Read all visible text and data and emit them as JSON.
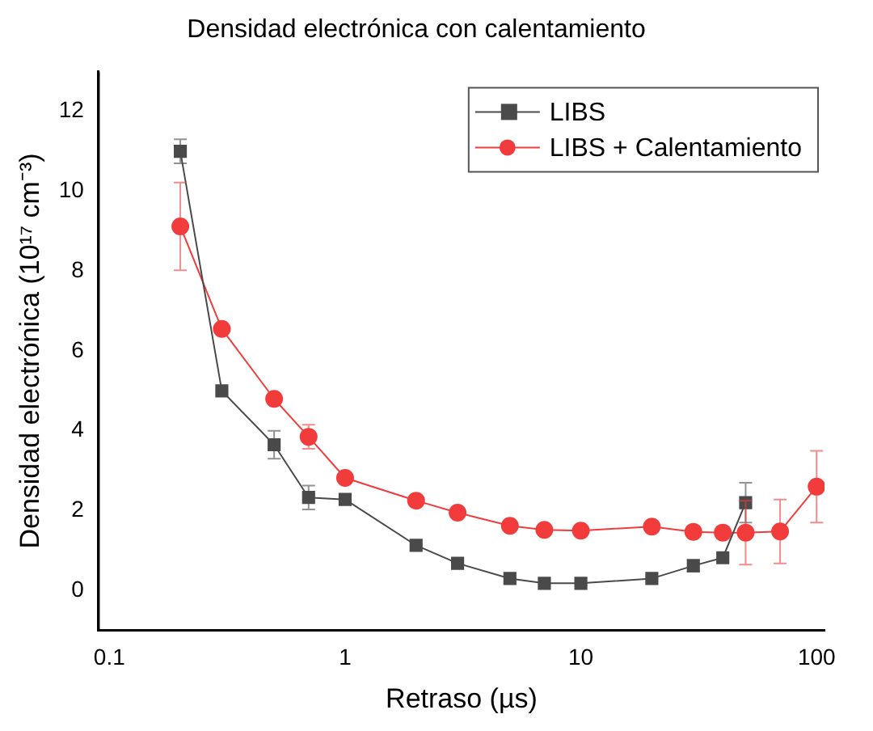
{
  "chart_data": {
    "type": "line",
    "title": "Densidad electrónica con calentamiento",
    "xlabel": "Retraso (µs)",
    "ylabel": "Densidad electrónica (10¹⁷ cm⁻³)",
    "log": "x",
    "xlim": [
      0.09,
      108
    ],
    "xticks": [
      0.1,
      1,
      10,
      100
    ],
    "ylim": [
      -1,
      13
    ],
    "yticks": [
      0,
      2,
      4,
      6,
      8,
      10,
      12
    ],
    "grid": false,
    "legend": "top right",
    "series": [
      {
        "name": "LIBS",
        "color": "#4a4a4a",
        "marker": "square",
        "x": [
          0.2,
          0.3,
          0.5,
          0.7,
          1,
          2,
          3,
          5,
          7,
          10,
          20,
          30,
          40,
          50
        ],
        "values": [
          11.0,
          5.0,
          3.65,
          2.33,
          2.28,
          1.13,
          0.68,
          0.3,
          0.18,
          0.18,
          0.3,
          0.62,
          0.82,
          2.2
        ],
        "errors": [
          0.3,
          null,
          0.35,
          0.3,
          null,
          null,
          null,
          null,
          null,
          null,
          null,
          0.15,
          null,
          0.5
        ]
      },
      {
        "name": "LIBS + Calentamiento",
        "color": "#f23c3c",
        "marker": "circle",
        "x": [
          0.2,
          0.3,
          0.5,
          0.7,
          1,
          2,
          3,
          5,
          7,
          10,
          20,
          30,
          40,
          50,
          70,
          100
        ],
        "values": [
          9.12,
          6.55,
          4.8,
          3.85,
          2.82,
          2.25,
          1.95,
          1.62,
          1.52,
          1.5,
          1.6,
          1.47,
          1.45,
          1.45,
          1.48,
          2.6
        ],
        "errors": [
          1.1,
          null,
          null,
          0.3,
          null,
          null,
          null,
          null,
          null,
          null,
          null,
          null,
          0.15,
          0.8,
          0.8,
          0.9
        ]
      }
    ]
  }
}
